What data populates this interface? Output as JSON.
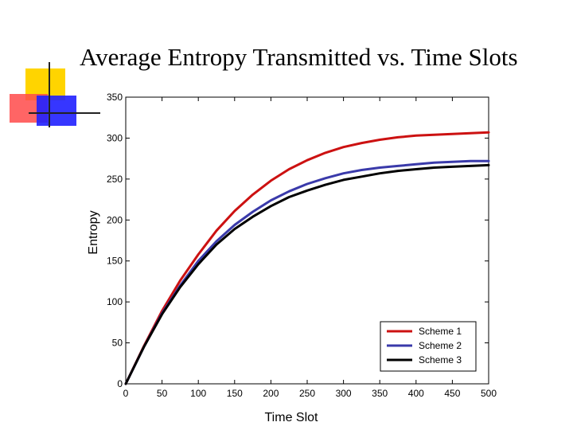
{
  "slide": {
    "title": "Average Entropy Transmitted vs. Time Slots"
  },
  "chart_data": {
    "type": "line",
    "title": "",
    "xlabel": "Time Slot",
    "ylabel": "Entropy",
    "xlim": [
      0,
      500
    ],
    "ylim": [
      0,
      350
    ],
    "xticks": [
      0,
      50,
      100,
      150,
      200,
      250,
      300,
      350,
      400,
      450,
      500
    ],
    "yticks": [
      0,
      50,
      100,
      150,
      200,
      250,
      300,
      350
    ],
    "grid": false,
    "legend": "bottom-right",
    "x": [
      0,
      25,
      50,
      75,
      100,
      125,
      150,
      175,
      200,
      225,
      250,
      275,
      300,
      325,
      350,
      375,
      400,
      425,
      450,
      475,
      500
    ],
    "series": [
      {
        "name": "Scheme 1",
        "color": "#cc1111",
        "values": [
          0,
          46,
          89,
          126,
          158,
          187,
          211,
          231,
          248,
          262,
          273,
          282,
          289,
          294,
          298,
          301,
          303,
          304,
          305,
          306,
          307
        ]
      },
      {
        "name": "Scheme 2",
        "color": "#3a3aaa",
        "values": [
          0,
          45,
          86,
          120,
          150,
          174,
          194,
          210,
          224,
          235,
          244,
          251,
          257,
          261,
          264,
          266,
          268,
          270,
          271,
          272,
          272
        ]
      },
      {
        "name": "Scheme 3",
        "color": "#000000",
        "values": [
          0,
          45,
          85,
          118,
          146,
          170,
          189,
          204,
          217,
          228,
          236,
          243,
          249,
          253,
          257,
          260,
          262,
          264,
          265,
          266,
          267
        ]
      }
    ]
  }
}
